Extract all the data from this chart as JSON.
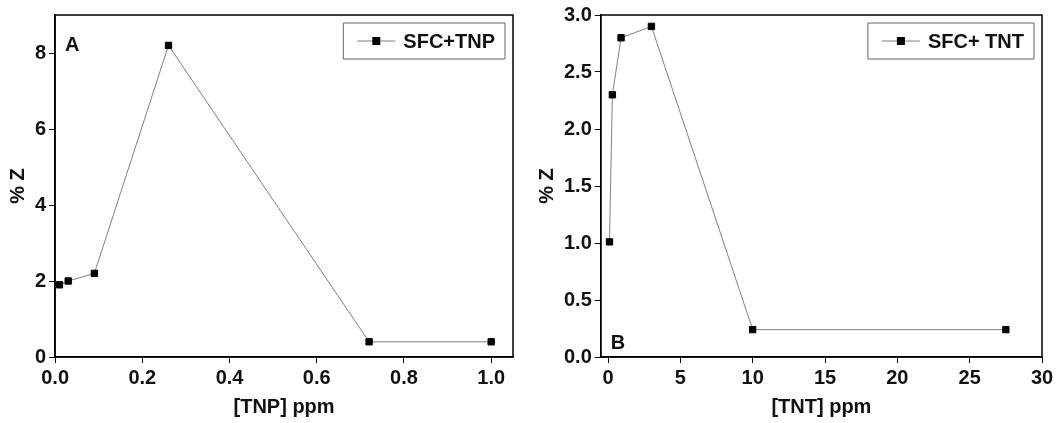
{
  "chart_data": [
    {
      "type": "line",
      "xlabel": "[TNP] ppm",
      "ylabel": "% Z",
      "annotations": [
        "A"
      ],
      "xlim": [
        0,
        1.05
      ],
      "xticks": [
        {
          "value": 0,
          "label": "0.0"
        },
        0.2,
        0.4,
        0.6,
        0.8,
        {
          "value": 1,
          "label": "1.0"
        }
      ],
      "ylim": [
        0,
        9
      ],
      "yticks": [
        0,
        2,
        4,
        6,
        8
      ],
      "grid": false,
      "legend": "top right",
      "marker": "square",
      "line_style": "solid",
      "series": [
        {
          "name": "SFC+TNP",
          "color": "#000000",
          "x": [
            0.01,
            0.03,
            0.09,
            0.26,
            0.72,
            1.0
          ],
          "values": [
            1.9,
            2.0,
            2.2,
            8.2,
            0.4,
            0.4
          ]
        }
      ]
    },
    {
      "type": "line",
      "xlabel": "[TNT] ppm",
      "ylabel": "% Z",
      "annotations": [
        "B"
      ],
      "xlim": [
        -0.5,
        30
      ],
      "xticks": [
        0,
        5,
        10,
        15,
        20,
        25,
        30
      ],
      "ylim": [
        0,
        3
      ],
      "yticks": [
        {
          "value": 0,
          "label": "0.0"
        },
        0.5,
        {
          "value": 1,
          "label": "1.0"
        },
        1.5,
        {
          "value": 2,
          "label": "2.0"
        },
        2.5,
        {
          "value": 3,
          "label": "3.0"
        }
      ],
      "grid": false,
      "legend": "top right",
      "marker": "square",
      "line_style": "solid",
      "series": [
        {
          "name": "SFC+ TNT",
          "color": "#000000",
          "x": [
            0.1,
            0.3,
            0.9,
            3,
            10,
            27.5
          ],
          "values": [
            1.01,
            2.3,
            2.8,
            2.9,
            0.24,
            0.24
          ]
        }
      ]
    }
  ]
}
